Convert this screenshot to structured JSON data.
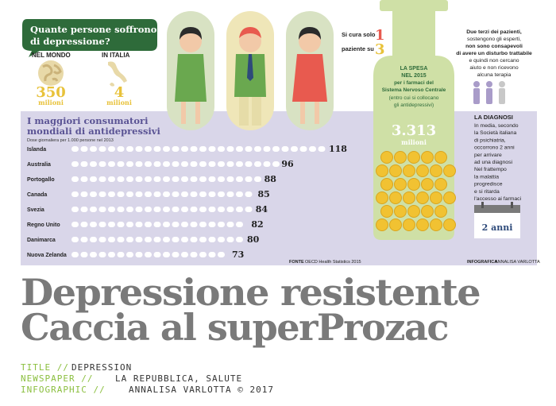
{
  "colors": {
    "purple": "#d9d6e9",
    "green": "#d8e2c3",
    "dark_green": "#2e6b3a",
    "pill_green": "#cfe0a6",
    "red": "#e85a4f",
    "yellow": "#e8c23a",
    "coin": "#f1c232",
    "title_gray": "#7a7a7a",
    "credit_green": "#8bbf3f"
  },
  "speech": {
    "line1": "Quante persone soffrono",
    "line2": "di depressione?"
  },
  "world": {
    "label": "NEL MONDO",
    "value": "350",
    "unit": "milioni"
  },
  "italy": {
    "label": "IN ITALIA",
    "value": "4",
    "unit": "milioni"
  },
  "cure": {
    "prefix": "Si cura solo",
    "num1": "1",
    "mid": "paziente su",
    "num2": "3"
  },
  "untreated": {
    "line1": "Due terzi dei pazienti,",
    "line2": "sostengono gli esperti,",
    "line3": "non sono consapevoli",
    "line4": "di avere un disturbo trattabile",
    "line5": "e quindi non cercano",
    "line6": "aiuto e non ricevono",
    "line7": "alcuna terapia"
  },
  "spending": {
    "l1": "LA SPESA",
    "l2": "NEL 2015",
    "l3": "per i farmaci del",
    "l4": "Sistema Nervoso Centrale",
    "l5": "(entro cui si collocano",
    "l6": "gli antidepressivi)",
    "value": "3.313",
    "unit": "milioni"
  },
  "diagnosis": {
    "title": "LA DIAGNOSI",
    "lines": [
      "In media, secondo",
      "la Società italiana",
      "di psichiatria,",
      "occorrono 2 anni",
      "per arrivare",
      "ad una diagnosi",
      "Nel frattempo",
      "la malattia",
      "progredisce",
      "e si ritarda",
      "l'accesso ai farmaci"
    ],
    "calendar": "2 anni"
  },
  "chart_title": {
    "line1": "I maggiori consumatori",
    "line2": "mondiali di antidepressivi",
    "subtitle": "Dose giornaliera per 1.000 persone nel 2013"
  },
  "chart_data": {
    "type": "bar",
    "title": "I maggiori consumatori mondiali di antidepressivi",
    "subtitle": "Dose giornaliera per 1.000 persone nel 2013",
    "categories": [
      "Islanda",
      "Australia",
      "Portogallo",
      "Canada",
      "Svezia",
      "Regno Unito",
      "Danimarca",
      "Nuova Zelanda"
    ],
    "values": [
      118,
      96,
      88,
      85,
      84,
      82,
      80,
      73
    ],
    "value_labels": [
      "118",
      "96",
      "88",
      "85",
      "84",
      "82",
      "80",
      "73"
    ]
  },
  "source": {
    "label": "FONTE",
    "text": "OECD Health Statistics 2015"
  },
  "infographic_credit": {
    "label": "INFOGRAFICA",
    "text": "ANNALISA VARLOTTA"
  },
  "headline": {
    "line1": "Depressione resistente",
    "line2": "Caccia al superProzac"
  },
  "credits": [
    {
      "key": "TITLE //",
      "value": "DEPRESSION"
    },
    {
      "key": "NEWSPAPER //",
      "value": "LA REPUBBLICA, SALUTE"
    },
    {
      "key": "INFOGRAPHIC //",
      "value": "ANNALISA VARLOTTA © 2017"
    }
  ]
}
